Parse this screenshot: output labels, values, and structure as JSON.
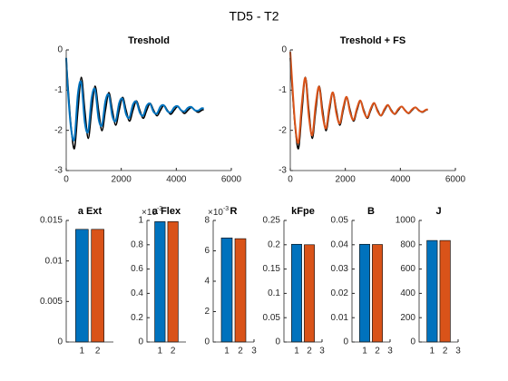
{
  "figure_title": "TD5 - T2",
  "chart_data": [
    {
      "type": "line",
      "title": "Treshold",
      "x": [
        0,
        50,
        175,
        300,
        425,
        550,
        675,
        800,
        925,
        1050,
        1175,
        1300,
        1425,
        1550,
        1675,
        1800,
        1925,
        2050,
        2175,
        2300,
        2425,
        2550,
        2675,
        2800,
        2925,
        3050,
        3175,
        3300,
        3425,
        3550,
        3675,
        3800,
        3925,
        4050,
        4175,
        4300,
        4425,
        4550,
        4675,
        4800,
        4925,
        5000
      ],
      "series": [
        {
          "color": "#000000",
          "values": [
            -0.2,
            -0.75,
            -1.9,
            -2.45,
            -1.5,
            -0.68,
            -1.5,
            -2.2,
            -1.5,
            -0.9,
            -1.5,
            -2.01,
            -1.5,
            -1.06,
            -1.5,
            -1.87,
            -1.5,
            -1.18,
            -1.5,
            -1.77,
            -1.5,
            -1.27,
            -1.5,
            -1.7,
            -1.5,
            -1.33,
            -1.5,
            -1.64,
            -1.5,
            -1.38,
            -1.5,
            -1.6,
            -1.5,
            -1.41,
            -1.5,
            -1.58,
            -1.5,
            -1.43,
            -1.5,
            -1.55,
            -1.5,
            -1.48
          ]
        },
        {
          "color": "#0072BD",
          "values": [
            -0.2,
            -0.9,
            -1.95,
            -2.2,
            -1.09,
            -0.82,
            -1.8,
            -2.02,
            -1.19,
            -0.99,
            -1.71,
            -1.87,
            -1.27,
            -1.12,
            -1.64,
            -1.76,
            -1.32,
            -1.22,
            -1.6,
            -1.68,
            -1.36,
            -1.29,
            -1.56,
            -1.63,
            -1.39,
            -1.34,
            -1.54,
            -1.58,
            -1.41,
            -1.38,
            -1.52,
            -1.55,
            -1.43,
            -1.4,
            -1.5,
            -1.53,
            -1.44,
            -1.42,
            -1.5,
            -1.51,
            -1.45,
            -1.46
          ]
        }
      ],
      "xlim": [
        0,
        6000
      ],
      "xticks": [
        0,
        2000,
        4000,
        6000
      ],
      "ylim": [
        -3,
        0
      ],
      "yticks": [
        -3,
        -2,
        -1,
        0
      ]
    },
    {
      "type": "line",
      "title": "Treshold + FS",
      "x": [
        0,
        50,
        175,
        300,
        425,
        550,
        675,
        800,
        925,
        1050,
        1175,
        1300,
        1425,
        1550,
        1675,
        1800,
        1925,
        2050,
        2175,
        2300,
        2425,
        2550,
        2675,
        2800,
        2925,
        3050,
        3175,
        3300,
        3425,
        3550,
        3675,
        3800,
        3925,
        4050,
        4175,
        4300,
        4425,
        4550,
        4675,
        4800,
        4925,
        5000
      ],
      "series": [
        {
          "color": "#000000",
          "values": [
            -0.2,
            -0.75,
            -1.9,
            -2.45,
            -1.5,
            -0.68,
            -1.5,
            -2.2,
            -1.5,
            -0.9,
            -1.5,
            -2.01,
            -1.5,
            -1.06,
            -1.5,
            -1.87,
            -1.5,
            -1.18,
            -1.5,
            -1.77,
            -1.5,
            -1.27,
            -1.5,
            -1.7,
            -1.5,
            -1.33,
            -1.5,
            -1.64,
            -1.5,
            -1.38,
            -1.5,
            -1.6,
            -1.5,
            -1.41,
            -1.5,
            -1.58,
            -1.5,
            -1.43,
            -1.5,
            -1.55,
            -1.5,
            -1.48
          ]
        },
        {
          "color": "#D95319",
          "values": [
            -0.05,
            -0.6,
            -1.85,
            -2.3,
            -1.3,
            -0.7,
            -1.65,
            -2.12,
            -1.35,
            -0.92,
            -1.62,
            -1.95,
            -1.4,
            -1.06,
            -1.58,
            -1.83,
            -1.43,
            -1.17,
            -1.56,
            -1.74,
            -1.45,
            -1.26,
            -1.54,
            -1.68,
            -1.46,
            -1.32,
            -1.53,
            -1.63,
            -1.47,
            -1.37,
            -1.52,
            -1.59,
            -1.47,
            -1.41,
            -1.51,
            -1.57,
            -1.48,
            -1.43,
            -1.51,
            -1.54,
            -1.49,
            -1.48
          ]
        }
      ],
      "xlim": [
        0,
        6000
      ],
      "xticks": [
        0,
        2000,
        4000,
        6000
      ],
      "ylim": [
        -3,
        0
      ],
      "yticks": [
        -3,
        -2,
        -1,
        0
      ]
    },
    {
      "type": "bar",
      "title": "a Ext",
      "x": [
        1,
        2
      ],
      "values": [
        0.0139,
        0.0139
      ],
      "colors": [
        "#0072BD",
        "#D95319"
      ],
      "xlim": [
        0,
        3
      ],
      "xticks": [
        1,
        2
      ],
      "ylim": [
        0,
        0.015
      ],
      "yticks": [
        0,
        0.005,
        0.01,
        0.015
      ]
    },
    {
      "type": "bar",
      "title": "a Flex",
      "exponent": {
        "base": "×10",
        "power": "-3"
      },
      "x": [
        1,
        2
      ],
      "values": [
        0.99,
        0.99
      ],
      "colors": [
        "#0072BD",
        "#D95319"
      ],
      "xlim": [
        0,
        3
      ],
      "xticks": [
        1,
        2
      ],
      "ylim": [
        0,
        1
      ],
      "yticks": [
        0,
        0.2,
        0.4,
        0.6,
        0.8,
        1
      ]
    },
    {
      "type": "bar",
      "title": "R",
      "exponent": {
        "base": "×10",
        "power": "-3"
      },
      "x": [
        1,
        2
      ],
      "values": [
        6.85,
        6.8
      ],
      "colors": [
        "#0072BD",
        "#D95319"
      ],
      "xlim": [
        0,
        3
      ],
      "xticks": [
        1,
        2,
        3
      ],
      "ylim": [
        0,
        8
      ],
      "yticks": [
        0,
        2,
        4,
        6,
        8
      ]
    },
    {
      "type": "bar",
      "title": "kFpe",
      "x": [
        1,
        2
      ],
      "values": [
        0.201,
        0.2
      ],
      "colors": [
        "#0072BD",
        "#D95319"
      ],
      "xlim": [
        0,
        3
      ],
      "xticks": [
        1,
        2,
        3
      ],
      "ylim": [
        0,
        0.25
      ],
      "yticks": [
        0,
        0.05,
        0.1,
        0.15,
        0.2,
        0.25
      ]
    },
    {
      "type": "bar",
      "title": "B",
      "x": [
        1,
        2
      ],
      "values": [
        0.0402,
        0.0401
      ],
      "colors": [
        "#0072BD",
        "#D95319"
      ],
      "xlim": [
        0,
        3
      ],
      "xticks": [
        1,
        2,
        3
      ],
      "ylim": [
        0,
        0.05
      ],
      "yticks": [
        0,
        0.01,
        0.02,
        0.03,
        0.04,
        0.05
      ]
    },
    {
      "type": "bar",
      "title": "J",
      "x": [
        1,
        2
      ],
      "values": [
        835,
        835
      ],
      "colors": [
        "#0072BD",
        "#D95319"
      ],
      "xlim": [
        0,
        3
      ],
      "xticks": [
        1,
        2,
        3
      ],
      "ylim": [
        0,
        1000
      ],
      "yticks": [
        0,
        200,
        400,
        600,
        800,
        1000
      ]
    }
  ]
}
